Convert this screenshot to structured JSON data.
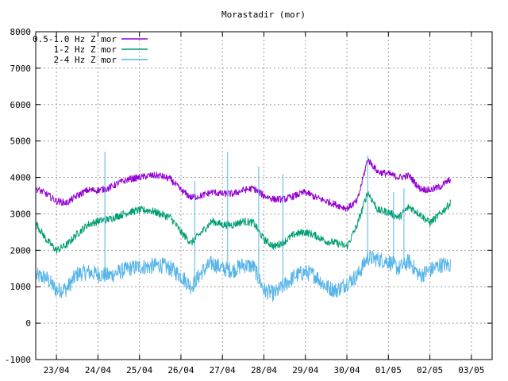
{
  "chart_data": {
    "type": "line",
    "title": "Morastadir (mor)",
    "xlabel": "",
    "ylabel": "",
    "ylim": [
      -1000,
      8000
    ],
    "yticks": [
      -1000,
      0,
      1000,
      2000,
      3000,
      4000,
      5000,
      6000,
      7000,
      8000
    ],
    "xlim": [
      "2024-04-22T12:00",
      "2024-05-03T12:00"
    ],
    "xtick_labels": [
      "23/04",
      "24/04",
      "25/04",
      "26/04",
      "27/04",
      "28/04",
      "29/04",
      "30/04",
      "01/05",
      "02/05",
      "03/05"
    ],
    "xtick_dates": [
      "2024-04-23",
      "2024-04-24",
      "2024-04-25",
      "2024-04-26",
      "2024-04-27",
      "2024-04-28",
      "2024-04-29",
      "2024-04-30",
      "2024-05-01",
      "2024-05-02",
      "2024-05-03"
    ],
    "grid": true,
    "legend_position": "top-left",
    "x": [
      "2024-04-22T12:00",
      "2024-04-22T18:00",
      "2024-04-23T00:00",
      "2024-04-23T06:00",
      "2024-04-23T12:00",
      "2024-04-23T18:00",
      "2024-04-24T00:00",
      "2024-04-24T06:00",
      "2024-04-24T12:00",
      "2024-04-24T18:00",
      "2024-04-25T00:00",
      "2024-04-25T06:00",
      "2024-04-25T12:00",
      "2024-04-25T18:00",
      "2024-04-26T00:00",
      "2024-04-26T06:00",
      "2024-04-26T12:00",
      "2024-04-26T18:00",
      "2024-04-27T00:00",
      "2024-04-27T06:00",
      "2024-04-27T12:00",
      "2024-04-27T18:00",
      "2024-04-28T00:00",
      "2024-04-28T06:00",
      "2024-04-28T12:00",
      "2024-04-28T18:00",
      "2024-04-29T00:00",
      "2024-04-29T06:00",
      "2024-04-29T12:00",
      "2024-04-29T18:00",
      "2024-04-30T00:00",
      "2024-04-30T06:00",
      "2024-04-30T12:00",
      "2024-04-30T18:00",
      "2024-05-01T00:00",
      "2024-05-01T06:00",
      "2024-05-01T12:00",
      "2024-05-01T18:00",
      "2024-05-02T00:00",
      "2024-05-02T06:00",
      "2024-05-02T12:00"
    ],
    "series": [
      {
        "name": "0.5-1.0 Hz Z mor",
        "color": "#9400d3",
        "values": [
          3700,
          3550,
          3350,
          3300,
          3500,
          3650,
          3650,
          3700,
          3850,
          3950,
          4000,
          4050,
          4050,
          3950,
          3650,
          3450,
          3500,
          3600,
          3550,
          3550,
          3650,
          3700,
          3500,
          3400,
          3400,
          3500,
          3600,
          3450,
          3350,
          3250,
          3150,
          3350,
          4500,
          4150,
          4100,
          4000,
          4050,
          3700,
          3650,
          3750,
          3950
        ]
      },
      {
        "name": "1-2 Hz Z mor",
        "color": "#009e73",
        "values": [
          2750,
          2300,
          2000,
          2150,
          2450,
          2700,
          2800,
          2850,
          2950,
          3050,
          3100,
          3100,
          3000,
          2900,
          2500,
          2200,
          2500,
          2800,
          2700,
          2700,
          2800,
          2750,
          2300,
          2100,
          2250,
          2450,
          2500,
          2400,
          2250,
          2200,
          2100,
          2700,
          3600,
          3100,
          3050,
          2900,
          3200,
          3000,
          2750,
          3000,
          3300
        ]
      },
      {
        "name": "2-4 Hz Z mor",
        "color": "#56b4e9",
        "values": [
          1300,
          1250,
          900,
          950,
          1350,
          1400,
          1350,
          1300,
          1400,
          1500,
          1550,
          1550,
          1600,
          1500,
          1300,
          1000,
          1400,
          1650,
          1500,
          1450,
          1600,
          1550,
          900,
          800,
          1050,
          1300,
          1400,
          1300,
          1000,
          900,
          1100,
          1300,
          1800,
          1750,
          1700,
          1500,
          1700,
          1300,
          1450,
          1600,
          1600
        ]
      }
    ],
    "spikes": [
      {
        "x": "2024-04-24T04:00",
        "y": 4700
      },
      {
        "x": "2024-04-26T08:00",
        "y": 3900
      },
      {
        "x": "2024-04-27T03:00",
        "y": 4700
      },
      {
        "x": "2024-04-27T21:00",
        "y": 4300
      },
      {
        "x": "2024-04-28T11:00",
        "y": 4100
      },
      {
        "x": "2024-04-30T12:00",
        "y": 4600
      },
      {
        "x": "2024-05-01T03:00",
        "y": 3600
      },
      {
        "x": "2024-05-01T09:00",
        "y": 3700
      }
    ]
  }
}
